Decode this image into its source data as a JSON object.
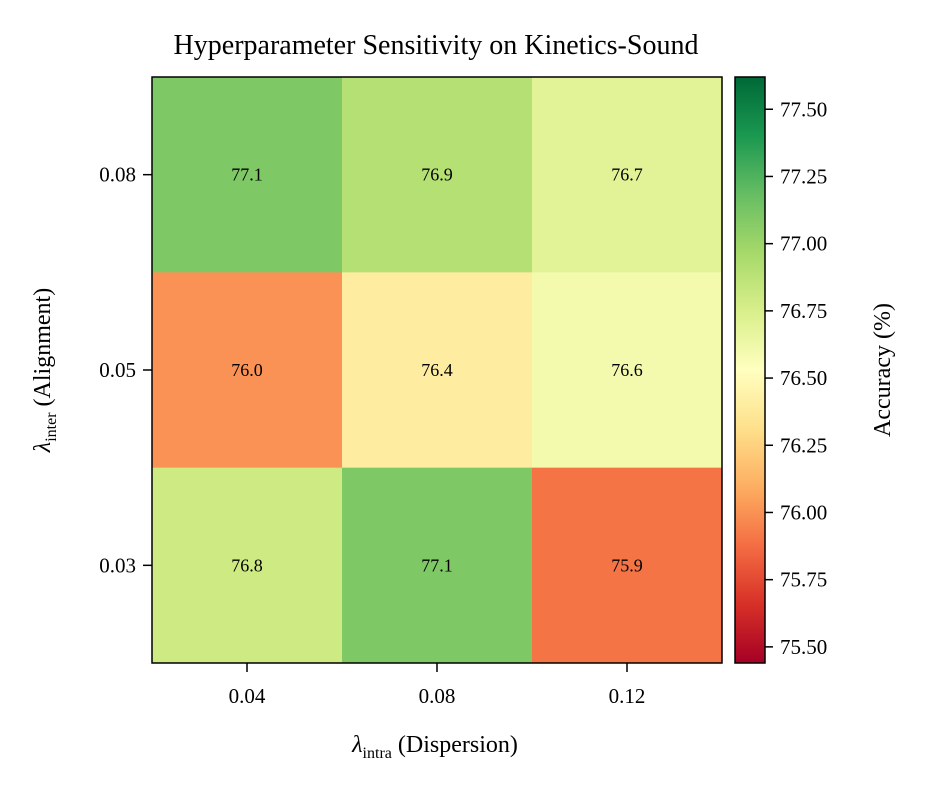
{
  "chart_data": {
    "type": "heatmap",
    "title": "Hyperparameter Sensitivity on Kinetics-Sound",
    "x": {
      "symbol": "λ",
      "subscript": "intra",
      "label_suffix": " (Dispersion)",
      "ticks": [
        "0.04",
        "0.08",
        "0.12"
      ]
    },
    "y": {
      "symbol": "λ",
      "subscript": "inter",
      "label_suffix": " (Alignment)",
      "ticks_top_to_bottom": [
        "0.08",
        "0.05",
        "0.03"
      ]
    },
    "values": [
      [
        77.1,
        76.9,
        76.7
      ],
      [
        76.0,
        76.4,
        76.6
      ],
      [
        76.8,
        77.1,
        75.9
      ]
    ],
    "value_labels": [
      [
        "77.1",
        "76.9",
        "76.7"
      ],
      [
        "76.0",
        "76.4",
        "76.6"
      ],
      [
        "76.8",
        "77.1",
        "75.9"
      ]
    ],
    "colormap": "RdYlGn",
    "colorbar": {
      "label": "Accuracy (%)",
      "vmin": 75.44,
      "vmax": 77.62,
      "ticks": [
        75.5,
        75.75,
        76.0,
        76.25,
        76.5,
        76.75,
        77.0,
        77.25,
        77.5
      ],
      "tick_labels": [
        "75.50",
        "75.75",
        "76.00",
        "76.25",
        "76.50",
        "76.75",
        "77.00",
        "77.25",
        "77.50"
      ]
    },
    "colormap_stops": [
      "#a50026",
      "#d73027",
      "#f46d43",
      "#fdae61",
      "#fee08b",
      "#ffffbf",
      "#d9ef8b",
      "#a6d96a",
      "#66bd63",
      "#1a9850",
      "#006837"
    ]
  }
}
